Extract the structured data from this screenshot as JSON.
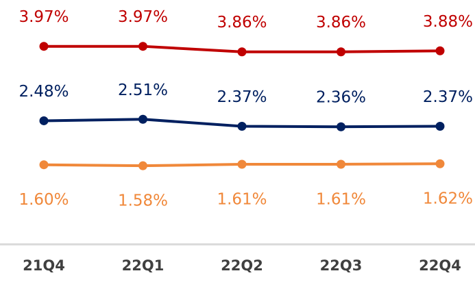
{
  "chart_data": {
    "type": "line",
    "categories": [
      "21Q4",
      "22Q1",
      "22Q2",
      "22Q3",
      "22Q4"
    ],
    "ylim": [
      1,
      4.5
    ],
    "series": [
      {
        "color": "#c00000",
        "values": [
          3.97,
          3.97,
          3.86,
          3.86,
          3.88
        ],
        "value_labels": [
          "3.97%",
          "3.97%",
          "3.86%",
          "3.86%",
          "3.88%"
        ]
      },
      {
        "color": "#002060",
        "values": [
          2.48,
          2.51,
          2.37,
          2.36,
          2.37
        ],
        "value_labels": [
          "2.48%",
          "2.51%",
          "2.37%",
          "2.36%",
          "2.37%"
        ]
      },
      {
        "color": "#f0883a",
        "values": [
          1.6,
          1.58,
          1.61,
          1.61,
          1.62
        ],
        "value_labels": [
          "1.60%",
          "1.58%",
          "1.61%",
          "1.61%",
          "1.62%"
        ]
      }
    ]
  }
}
